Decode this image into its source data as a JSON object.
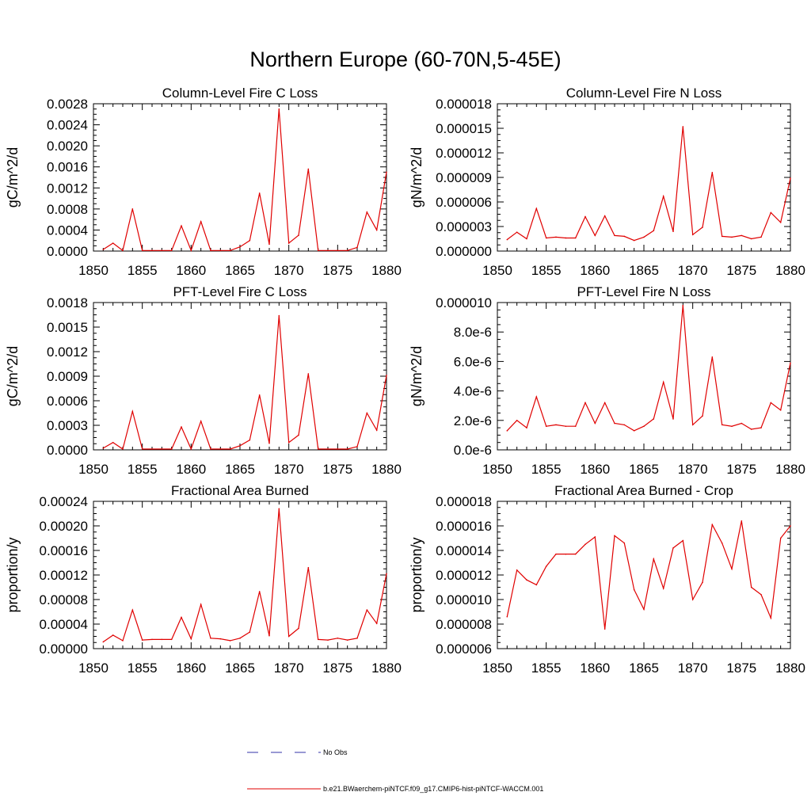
{
  "page_title": "Northern Europe (60-70N,5-45E)",
  "legend": {
    "placement": "bottom-center",
    "entries": [
      {
        "label": "No Obs",
        "color": "#3333aa",
        "dashed": true
      },
      {
        "label": "b.e21.BWaerchem-piNTCF.f09_g17.CMIP6-hist-piNTCF-WACCM.001",
        "color": "#e00000",
        "dashed": false
      }
    ]
  },
  "chart_data": [
    {
      "type": "line",
      "title": "Column-Level Fire C Loss",
      "ylabel": "gC/m^2/d",
      "xlim": [
        1850,
        1880
      ],
      "ylim": [
        0,
        0.0028
      ],
      "xticks": [
        1850,
        1855,
        1860,
        1865,
        1870,
        1875,
        1880
      ],
      "yticks": [
        0,
        0.0004,
        0.0008,
        0.0012,
        0.0016,
        0.002,
        0.0024,
        0.0028
      ],
      "ytick_labels": [
        "0.0000",
        "0.0004",
        "0.0008",
        "0.0012",
        "0.0016",
        "0.0020",
        "0.0024",
        "0.0028"
      ],
      "x": [
        1851,
        1852,
        1853,
        1854,
        1855,
        1856,
        1857,
        1858,
        1859,
        1860,
        1861,
        1862,
        1863,
        1864,
        1865,
        1866,
        1867,
        1868,
        1869,
        1870,
        1871,
        1872,
        1873,
        1874,
        1875,
        1876,
        1877,
        1878,
        1879,
        1880
      ],
      "series": [
        {
          "color": "#e00000",
          "values": [
            3e-05,
            0.00015,
            1e-05,
            0.0008,
            1e-05,
            1e-05,
            1e-05,
            1e-05,
            0.00048,
            1e-05,
            0.00056,
            1e-05,
            1e-05,
            1e-05,
            8e-05,
            0.0002,
            0.0011,
            0.00013,
            0.0027,
            0.00015,
            0.0003,
            0.00156,
            1e-05,
            1e-05,
            1e-05,
            1e-05,
            7e-05,
            0.00074,
            0.0004,
            0.0015
          ]
        }
      ]
    },
    {
      "type": "line",
      "title": "Column-Level Fire N Loss",
      "ylabel": "gN/m^2/d",
      "xlim": [
        1850,
        1880
      ],
      "ylim": [
        0,
        1.8e-05
      ],
      "xticks": [
        1850,
        1855,
        1860,
        1865,
        1870,
        1875,
        1880
      ],
      "yticks": [
        0,
        3e-06,
        6e-06,
        9e-06,
        1.2e-05,
        1.5e-05,
        1.8e-05
      ],
      "ytick_labels": [
        "0.000000",
        "0.000003",
        "0.000006",
        "0.000009",
        "0.000012",
        "0.000015",
        "0.000018"
      ],
      "x": [
        1851,
        1852,
        1853,
        1854,
        1855,
        1856,
        1857,
        1858,
        1859,
        1860,
        1861,
        1862,
        1863,
        1864,
        1865,
        1866,
        1867,
        1868,
        1869,
        1870,
        1871,
        1872,
        1873,
        1874,
        1875,
        1876,
        1877,
        1878,
        1879,
        1880
      ],
      "series": [
        {
          "color": "#e00000",
          "values": [
            1.4e-06,
            2.3e-06,
            1.5e-06,
            5.2e-06,
            1.6e-06,
            1.7e-06,
            1.6e-06,
            1.6e-06,
            4.2e-06,
            1.9e-06,
            4.3e-06,
            1.9e-06,
            1.8e-06,
            1.3e-06,
            1.7e-06,
            2.5e-06,
            6.7e-06,
            2.4e-06,
            1.52e-05,
            2e-06,
            2.9e-06,
            9.6e-06,
            1.8e-06,
            1.7e-06,
            1.9e-06,
            1.5e-06,
            1.7e-06,
            4.7e-06,
            3.5e-06,
            8.9e-06
          ]
        }
      ]
    },
    {
      "type": "line",
      "title": "PFT-Level Fire C Loss",
      "ylabel": "gC/m^2/d",
      "xlim": [
        1850,
        1880
      ],
      "ylim": [
        0,
        0.0018
      ],
      "xticks": [
        1850,
        1855,
        1860,
        1865,
        1870,
        1875,
        1880
      ],
      "yticks": [
        0,
        0.0003,
        0.0006,
        0.0009,
        0.0012,
        0.0015,
        0.0018
      ],
      "ytick_labels": [
        "0.0000",
        "0.0003",
        "0.0006",
        "0.0009",
        "0.0012",
        "0.0015",
        "0.0018"
      ],
      "x": [
        1851,
        1852,
        1853,
        1854,
        1855,
        1856,
        1857,
        1858,
        1859,
        1860,
        1861,
        1862,
        1863,
        1864,
        1865,
        1866,
        1867,
        1868,
        1869,
        1870,
        1871,
        1872,
        1873,
        1874,
        1875,
        1876,
        1877,
        1878,
        1879,
        1880
      ],
      "series": [
        {
          "color": "#e00000",
          "values": [
            2e-05,
            9e-05,
            1e-05,
            0.00047,
            1e-05,
            1e-05,
            1e-05,
            1e-05,
            0.00028,
            1e-05,
            0.00035,
            1e-05,
            1e-05,
            1e-05,
            5e-05,
            0.00012,
            0.00067,
            8e-05,
            0.00164,
            9e-05,
            0.00018,
            0.00093,
            1e-05,
            1e-05,
            1e-05,
            1e-05,
            4e-05,
            0.00045,
            0.00024,
            0.00091
          ]
        }
      ]
    },
    {
      "type": "line",
      "title": "PFT-Level Fire N Loss",
      "ylabel": "gN/m^2/d",
      "xlim": [
        1850,
        1880
      ],
      "ylim": [
        0,
        1e-05
      ],
      "xticks": [
        1850,
        1855,
        1860,
        1865,
        1870,
        1875,
        1880
      ],
      "yticks": [
        0,
        2e-06,
        4e-06,
        6e-06,
        8e-06,
        1e-05
      ],
      "ytick_labels": [
        "0.0e-6",
        "2.0e-6",
        "4.0e-6",
        "6.0e-6",
        "8.0e-6",
        "0.000010"
      ],
      "x": [
        1851,
        1852,
        1853,
        1854,
        1855,
        1856,
        1857,
        1858,
        1859,
        1860,
        1861,
        1862,
        1863,
        1864,
        1865,
        1866,
        1867,
        1868,
        1869,
        1870,
        1871,
        1872,
        1873,
        1874,
        1875,
        1876,
        1877,
        1878,
        1879,
        1880
      ],
      "series": [
        {
          "color": "#e00000",
          "values": [
            1.3e-06,
            2e-06,
            1.5e-06,
            3.6e-06,
            1.6e-06,
            1.7e-06,
            1.6e-06,
            1.6e-06,
            3.2e-06,
            1.8e-06,
            3.2e-06,
            1.8e-06,
            1.7e-06,
            1.3e-06,
            1.6e-06,
            2.1e-06,
            4.6e-06,
            2.1e-06,
            9.8e-06,
            1.7e-06,
            2.3e-06,
            6.3e-06,
            1.7e-06,
            1.6e-06,
            1.8e-06,
            1.4e-06,
            1.5e-06,
            3.2e-06,
            2.7e-06,
            5.9e-06
          ]
        }
      ]
    },
    {
      "type": "line",
      "title": "Fractional Area Burned",
      "ylabel": "proportion/y",
      "xlim": [
        1850,
        1880
      ],
      "ylim": [
        0,
        0.00024
      ],
      "xticks": [
        1850,
        1855,
        1860,
        1865,
        1870,
        1875,
        1880
      ],
      "yticks": [
        0,
        4e-05,
        8e-05,
        0.00012,
        0.00016,
        0.0002,
        0.00024
      ],
      "ytick_labels": [
        "0.00000",
        "0.00004",
        "0.00008",
        "0.00012",
        "0.00016",
        "0.00020",
        "0.00024"
      ],
      "x": [
        1851,
        1852,
        1853,
        1854,
        1855,
        1856,
        1857,
        1858,
        1859,
        1860,
        1861,
        1862,
        1863,
        1864,
        1865,
        1866,
        1867,
        1868,
        1869,
        1870,
        1871,
        1872,
        1873,
        1874,
        1875,
        1876,
        1877,
        1878,
        1879,
        1880
      ],
      "series": [
        {
          "color": "#e00000",
          "values": [
            1.1e-05,
            2.2e-05,
            1.3e-05,
            6.3e-05,
            1.4e-05,
            1.5e-05,
            1.5e-05,
            1.5e-05,
            5.1e-05,
            1.6e-05,
            7.2e-05,
            1.7e-05,
            1.6e-05,
            1.3e-05,
            1.7e-05,
            2.7e-05,
            9.3e-05,
            2.1e-05,
            0.000228,
            2e-05,
            3.3e-05,
            0.000132,
            1.5e-05,
            1.4e-05,
            1.7e-05,
            1.4e-05,
            1.7e-05,
            6.3e-05,
            4.1e-05,
            0.000122
          ]
        }
      ]
    },
    {
      "type": "line",
      "title": "Fractional Area Burned - Crop",
      "ylabel": "proportion/y",
      "xlim": [
        1850,
        1880
      ],
      "ylim": [
        6e-06,
        1.8e-05
      ],
      "xticks": [
        1850,
        1855,
        1860,
        1865,
        1870,
        1875,
        1880
      ],
      "yticks": [
        6e-06,
        8e-06,
        1e-05,
        1.2e-05,
        1.4e-05,
        1.6e-05,
        1.8e-05
      ],
      "ytick_labels": [
        "0.000006",
        "0.000008",
        "0.000010",
        "0.000012",
        "0.000014",
        "0.000016",
        "0.000018"
      ],
      "x": [
        1851,
        1852,
        1853,
        1854,
        1855,
        1856,
        1857,
        1858,
        1859,
        1860,
        1861,
        1862,
        1863,
        1864,
        1865,
        1866,
        1867,
        1868,
        1869,
        1870,
        1871,
        1872,
        1873,
        1874,
        1875,
        1876,
        1877,
        1878,
        1879,
        1880
      ],
      "series": [
        {
          "color": "#e00000",
          "values": [
            8.6e-06,
            1.24e-05,
            1.16e-05,
            1.12e-05,
            1.27e-05,
            1.37e-05,
            1.37e-05,
            1.37e-05,
            1.45e-05,
            1.51e-05,
            7.6e-06,
            1.52e-05,
            1.46e-05,
            1.08e-05,
            9.2e-06,
            1.33e-05,
            1.09e-05,
            1.42e-05,
            1.48e-05,
            1e-05,
            1.14e-05,
            1.61e-05,
            1.46e-05,
            1.25e-05,
            1.64e-05,
            1.1e-05,
            1.04e-05,
            8.5e-06,
            1.5e-05,
            1.6e-05
          ]
        }
      ]
    }
  ]
}
